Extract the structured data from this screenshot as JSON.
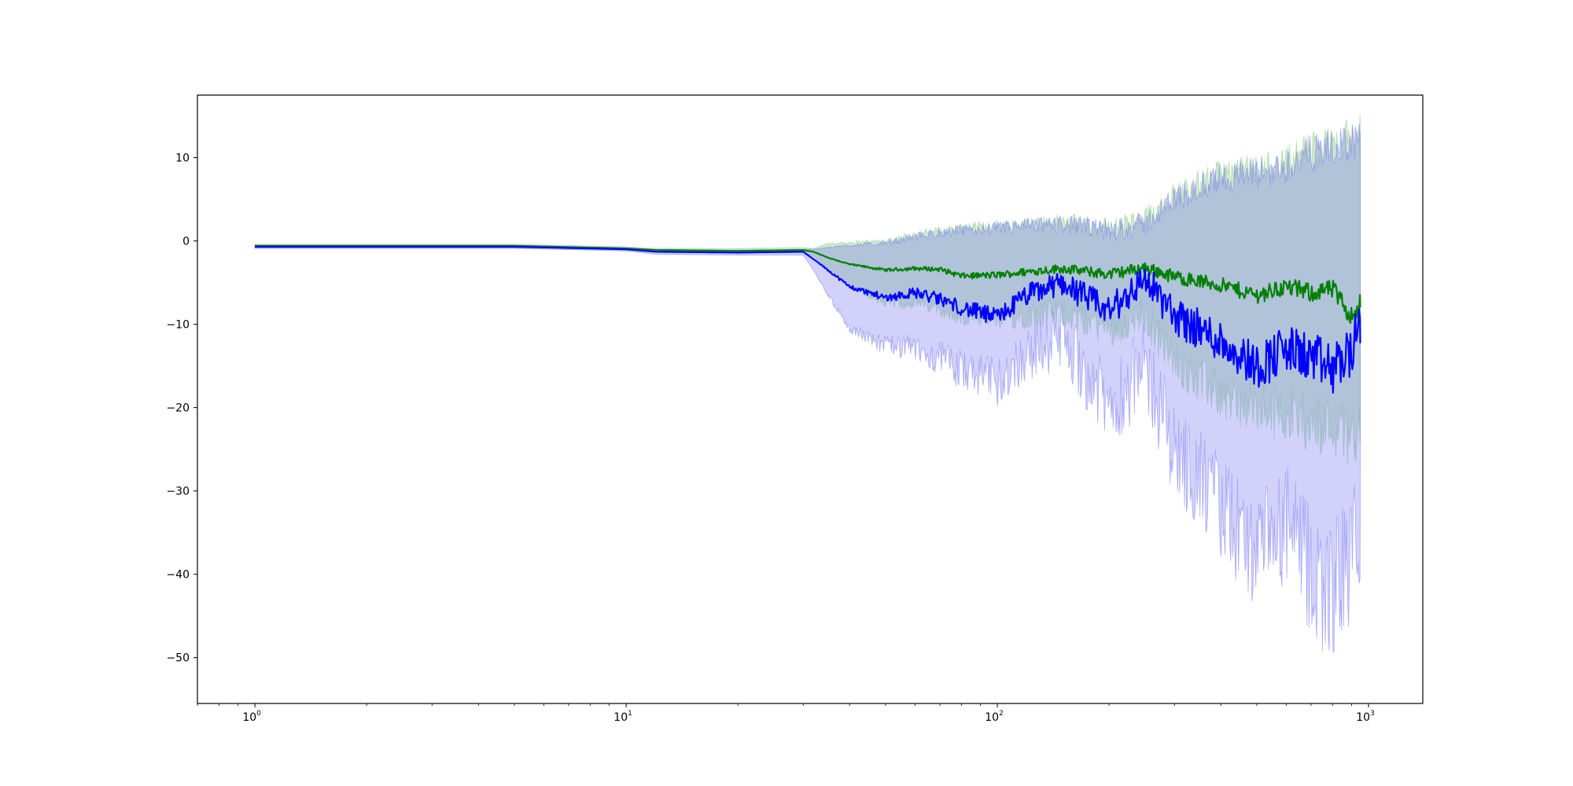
{
  "chart_data": {
    "type": "line",
    "title": "",
    "xlabel": "",
    "ylabel": "",
    "xscale": "log",
    "xlim": [
      0.7,
      1400
    ],
    "ylim": [
      -55.5,
      17.5
    ],
    "grid": false,
    "x_ticks": [
      {
        "base": "10",
        "exp": "0",
        "value": 1
      },
      {
        "base": "10",
        "exp": "1",
        "value": 10
      },
      {
        "base": "10",
        "exp": "2",
        "value": 100
      },
      {
        "base": "10",
        "exp": "3",
        "value": 1000
      }
    ],
    "y_ticks": [
      {
        "label": "10",
        "value": 10
      },
      {
        "label": "0",
        "value": 0
      },
      {
        "label": "−10",
        "value": -10
      },
      {
        "label": "−20",
        "value": -20
      },
      {
        "label": "−30",
        "value": -30
      },
      {
        "label": "−40",
        "value": -40
      },
      {
        "label": "−50",
        "value": -50
      }
    ],
    "series": [
      {
        "color": "#008000",
        "band_color": "#90d090",
        "x": [
          1,
          5,
          10,
          12,
          20,
          30,
          32,
          35,
          40,
          50,
          60,
          70,
          80,
          100,
          120,
          150,
          200,
          250,
          300,
          400,
          500,
          600,
          700,
          800,
          900,
          950
        ],
        "y": [
          -0.6,
          -0.6,
          -0.9,
          -1.1,
          -1.2,
          -1.1,
          -1.3,
          -2.0,
          -2.8,
          -3.5,
          -3.3,
          -3.4,
          -4.2,
          -4.1,
          -3.7,
          -3.3,
          -4.0,
          -3.2,
          -4.3,
          -5.3,
          -6.5,
          -5.5,
          -6.2,
          -5.8,
          -9.0,
          -7.5
        ],
        "upper": [
          -0.4,
          -0.4,
          -0.7,
          -0.9,
          -0.9,
          -0.8,
          -0.9,
          -0.3,
          -0.2,
          0.0,
          0.8,
          1.2,
          1.5,
          1.8,
          2.0,
          2.3,
          1.5,
          2.5,
          5.5,
          8.0,
          8.5,
          9.5,
          11.0,
          11.5,
          12.5,
          13.0
        ],
        "lower": [
          -0.8,
          -0.8,
          -1.1,
          -1.3,
          -1.4,
          -1.4,
          -1.8,
          -3.5,
          -5.5,
          -7.5,
          -7.5,
          -8.0,
          -9.5,
          -9.5,
          -9.0,
          -8.5,
          -10.5,
          -9.0,
          -14.5,
          -18.5,
          -20.5,
          -20.5,
          -22.0,
          -22.0,
          -23.5,
          -22.0
        ]
      },
      {
        "color": "#0000ff",
        "band_color": "#7c7cf0",
        "x": [
          1,
          5,
          10,
          12,
          20,
          30,
          32,
          35,
          40,
          50,
          60,
          70,
          80,
          100,
          120,
          150,
          200,
          250,
          300,
          400,
          500,
          600,
          700,
          800,
          900,
          950
        ],
        "y": [
          -0.7,
          -0.7,
          -1.0,
          -1.3,
          -1.4,
          -1.3,
          -2.2,
          -3.5,
          -5.5,
          -6.8,
          -6.2,
          -7.0,
          -8.0,
          -9.2,
          -6.5,
          -5.0,
          -8.5,
          -4.5,
          -9.0,
          -12.0,
          -15.0,
          -13.0,
          -14.0,
          -15.5,
          -13.0,
          -11.0
        ],
        "upper": [
          -0.5,
          -0.5,
          -0.8,
          -1.0,
          -1.1,
          -1.0,
          -1.0,
          -0.8,
          -0.5,
          -0.3,
          0.5,
          1.0,
          1.2,
          1.5,
          1.8,
          2.0,
          1.2,
          2.0,
          5.0,
          7.5,
          8.0,
          9.0,
          10.5,
          11.0,
          12.0,
          12.5
        ],
        "lower": [
          -0.9,
          -0.9,
          -1.2,
          -1.6,
          -1.7,
          -1.7,
          -3.5,
          -6.5,
          -10.5,
          -12.5,
          -13.0,
          -14.0,
          -15.5,
          -17.0,
          -13.5,
          -11.5,
          -20.0,
          -15.0,
          -25.0,
          -32.0,
          -38.0,
          -34.0,
          -40.0,
          -42.0,
          -38.0,
          -33.0
        ]
      }
    ]
  }
}
